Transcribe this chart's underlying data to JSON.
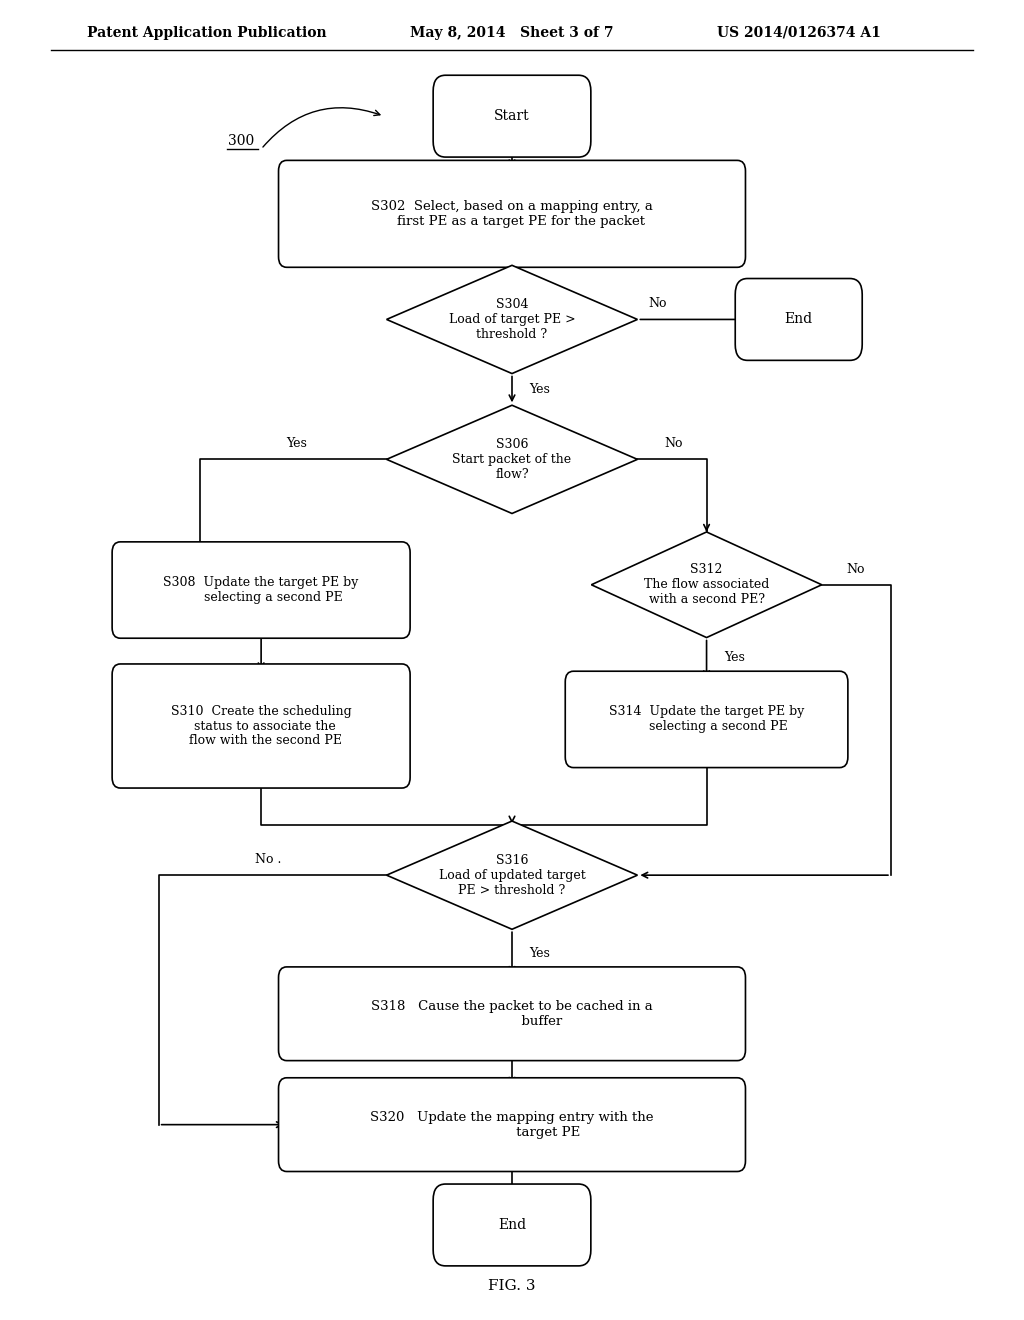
{
  "bg_color": "#ffffff",
  "text_color": "#000000",
  "header_left": "Patent Application Publication",
  "header_mid": "May 8, 2014   Sheet 3 of 7",
  "header_right": "US 2014/0126374 A1",
  "fig_label": "FIG. 3",
  "diagram_label": "300"
}
